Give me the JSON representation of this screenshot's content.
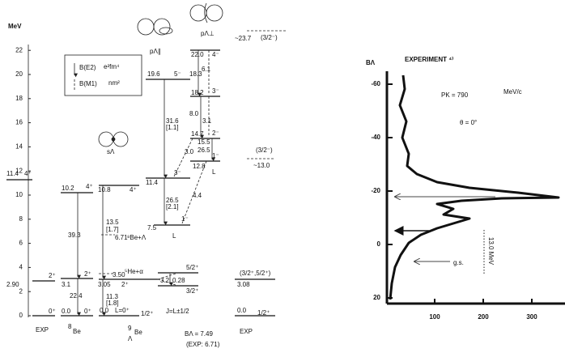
{
  "left": {
    "unit": "MeV",
    "yticks": [
      0,
      2,
      4,
      6,
      8,
      10,
      12,
      14,
      16,
      18,
      20,
      22
    ],
    "texts": [
      "EXP",
      "2.90",
      "2⁺",
      "11.4",
      "4⁺",
      "0⁺",
      "0.0",
      "0⁺",
      "3.1",
      "2⁺",
      "10.2",
      "4⁺",
      "39.3",
      "22.4",
      "8",
      "Be",
      "0.0",
      "L=0⁺",
      "1/2⁺",
      "3.05",
      "2⁺",
      "3.50",
      "⁵He+α",
      "6.71",
      "⁸Be+Λ",
      "10.8",
      "4⁺",
      "13.5",
      "[1.7]",
      "11.3",
      "[1.8]",
      "9",
      "Λ",
      "Be",
      "5/2⁺",
      "3/2⁺",
      "3.2",
      "0.28",
      "J=L±1/2",
      "7.5",
      "1⁻",
      "11.4",
      "3⁻",
      "19.6",
      "5⁻",
      "31.6",
      "[1.1]",
      "26.5",
      "[2.1]",
      "L",
      "12.8",
      "1⁻",
      "14.7",
      "2⁻",
      "18.2",
      "3⁻",
      "22.0",
      "4⁻",
      "L",
      "18.3",
      "6.1",
      "8.0",
      "3.1",
      "15.5",
      "26.5",
      "3.0",
      "4.4",
      "~23.7",
      "(3/2⁻)",
      "(3/2⁻)",
      "~13.0",
      "0.0",
      "1/2⁺",
      "3.08",
      "(3/2⁺,5/2⁺)",
      "EXP",
      "BΛ = 7.49",
      "(EXP: 6.71)",
      "B(E2)",
      "e²fm⁴",
      "B(M1)",
      "nm²",
      "sΛ",
      "pΛ∥",
      "pΛ⊥"
    ]
  },
  "right": {
    "y_label": "BΛ",
    "title": "EXPERIMENT ⁴⁾",
    "yticks": [
      -60,
      -40,
      -20,
      0,
      20
    ],
    "xticks": [
      100,
      200,
      300
    ],
    "momentum": "PK = 790",
    "momentum_unit": "MeV/c",
    "angle": "θ = 0°",
    "ground_state": "g.s.",
    "gap": "13.0 MeV"
  }
}
